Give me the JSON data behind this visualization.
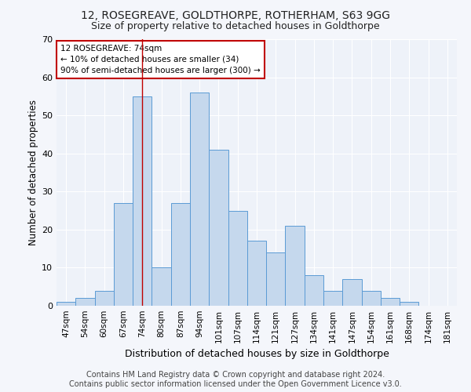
{
  "title1": "12, ROSEGREAVE, GOLDTHORPE, ROTHERHAM, S63 9GG",
  "title2": "Size of property relative to detached houses in Goldthorpe",
  "xlabel": "Distribution of detached houses by size in Goldthorpe",
  "ylabel": "Number of detached properties",
  "categories": [
    "47sqm",
    "54sqm",
    "60sqm",
    "67sqm",
    "74sqm",
    "80sqm",
    "87sqm",
    "94sqm",
    "101sqm",
    "107sqm",
    "114sqm",
    "121sqm",
    "127sqm",
    "134sqm",
    "141sqm",
    "147sqm",
    "154sqm",
    "161sqm",
    "168sqm",
    "174sqm",
    "181sqm"
  ],
  "values": [
    1,
    2,
    4,
    27,
    55,
    10,
    27,
    56,
    41,
    25,
    17,
    14,
    21,
    8,
    4,
    7,
    4,
    2,
    1,
    0,
    0
  ],
  "bar_color": "#c5d8ed",
  "bar_edge_color": "#5b9bd5",
  "highlight_bar_index": 4,
  "highlight_line_color": "#c00000",
  "ylim": [
    0,
    70
  ],
  "yticks": [
    0,
    10,
    20,
    30,
    40,
    50,
    60,
    70
  ],
  "annotation_text": "12 ROSEGREAVE: 74sqm\n← 10% of detached houses are smaller (34)\n90% of semi-detached houses are larger (300) →",
  "annotation_box_color": "#c00000",
  "background_color": "#eef2f9",
  "grid_color": "#ffffff",
  "footer_text": "Contains HM Land Registry data © Crown copyright and database right 2024.\nContains public sector information licensed under the Open Government Licence v3.0.",
  "title1_fontsize": 10,
  "title2_fontsize": 9,
  "xlabel_fontsize": 9,
  "ylabel_fontsize": 8.5,
  "footer_fontsize": 7,
  "tick_fontsize": 7.5,
  "ytick_fontsize": 8
}
